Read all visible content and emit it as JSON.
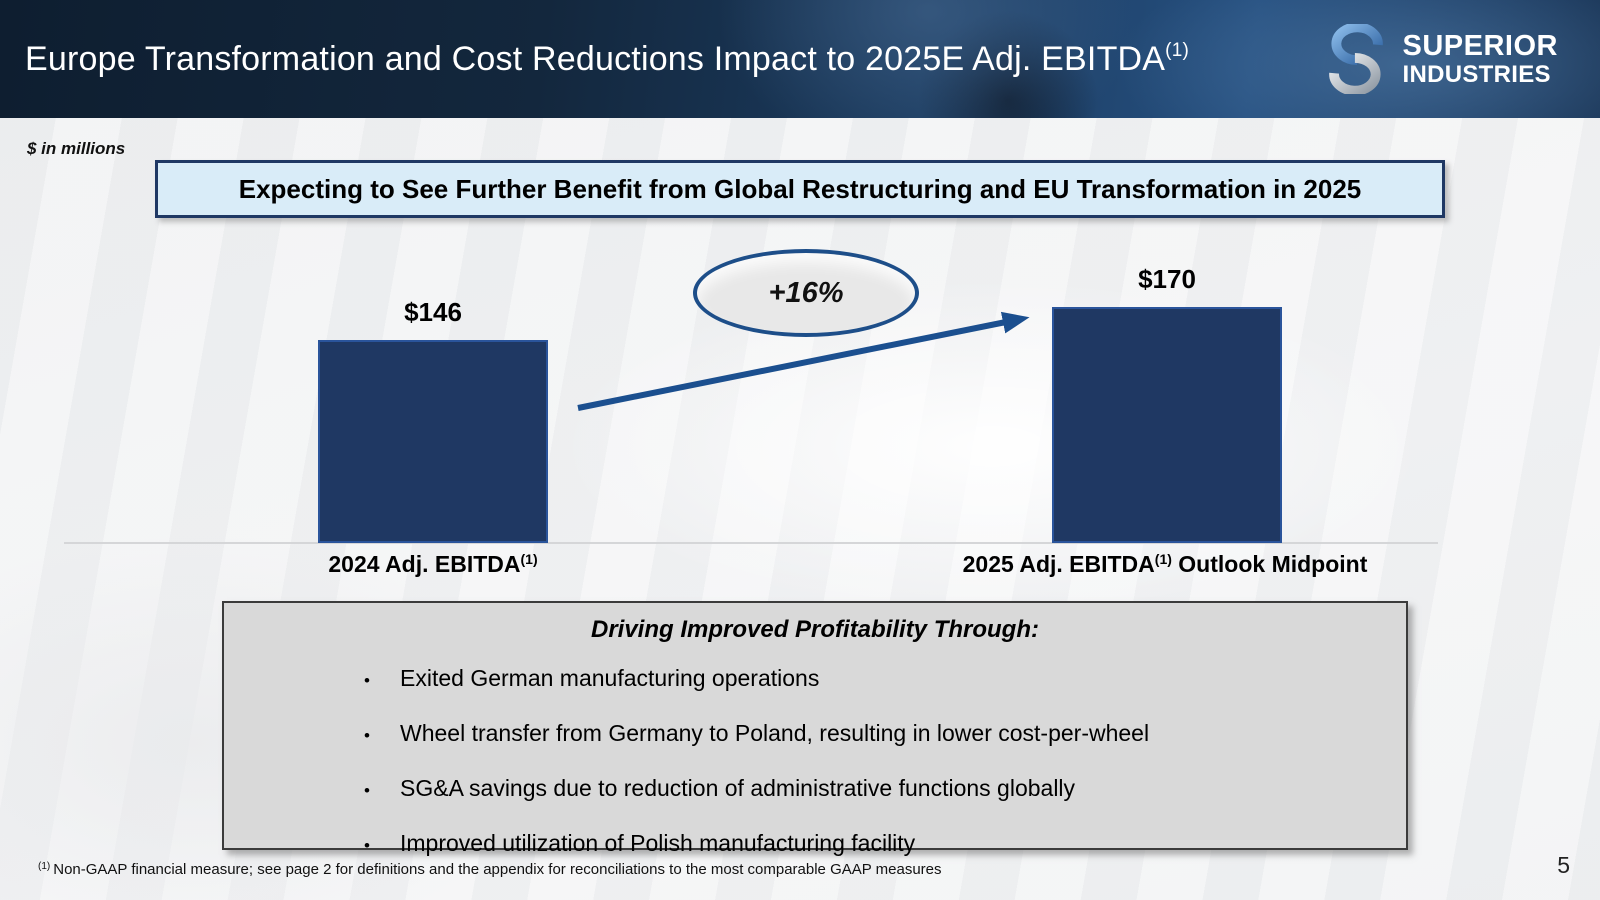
{
  "header": {
    "title": "Europe Transformation and Cost Reductions Impact to 2025E Adj. EBITDA",
    "title_superscript": "(1)",
    "logo_line1": "SUPERIOR",
    "logo_line2": "INDUSTRIES"
  },
  "units_note": "$ in millions",
  "banner_text": "Expecting to See Further Benefit from Global Restructuring and EU Transformation in 2025",
  "growth_label": "+16%",
  "bars": [
    {
      "value_label": "$146",
      "axis_label": "2024 Adj. EBITDA",
      "axis_superscript": "(1)",
      "axis_label_suffix": ""
    },
    {
      "value_label": "$170",
      "axis_label": "2025 Adj. EBITDA",
      "axis_superscript": "(1)",
      "axis_label_suffix": " Outlook Midpoint"
    }
  ],
  "drivers": {
    "title": "Driving Improved Profitability Through:",
    "bullets": [
      "Exited German manufacturing operations",
      "Wheel transfer from Germany to Poland, resulting in lower cost-per-wheel",
      "SG&A savings due to reduction of administrative functions globally",
      "Improved utilization of Polish manufacturing facility"
    ]
  },
  "footnote": {
    "superscript": "(1)",
    "text": "Non-GAAP financial measure; see page 2 for definitions and the appendix for reconciliations to the most comparable GAAP measures"
  },
  "page_number": "5",
  "colors": {
    "header_navy": "#13273D",
    "bar_fill": "#1F3863",
    "bar_border": "#2A549B",
    "banner_fill": "#D9ECF8",
    "banner_border": "#1F3864",
    "oval_fill": "#E8E8E8",
    "oval_border": "#1D4E89",
    "arrow": "#1B4F8F",
    "drivers_box_fill": "#D9D9D9",
    "baseline": "#D5D6D8"
  },
  "chart_data": {
    "type": "bar",
    "categories": [
      "2024 Adj. EBITDA(1)",
      "2025 Adj. EBITDA(1) Outlook Midpoint"
    ],
    "values": [
      146,
      170
    ],
    "data_labels": [
      "$146",
      "$170"
    ],
    "units": "$ in millions",
    "title": "Expecting to See Further Benefit from Global Restructuring and EU Transformation in 2025",
    "xlabel": "",
    "ylabel": "Adj. EBITDA ($ in millions)",
    "ylim": [
      0,
      190
    ],
    "grid": false,
    "legend": false,
    "annotations": [
      "+16% growth arrow from 2024 bar to 2025 bar"
    ]
  }
}
